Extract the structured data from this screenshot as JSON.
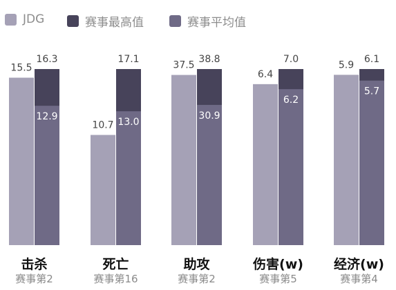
{
  "chart_data": {
    "type": "bar",
    "categories": [
      "击杀",
      "死亡",
      "助攻",
      "伤害(w)",
      "经济(w)"
    ],
    "category_subtitles": [
      "赛事第2",
      "赛事第16",
      "赛事第2",
      "赛事第5",
      "赛事第4"
    ],
    "series": [
      {
        "name": "JDG",
        "color": "#a5a1b6",
        "values": [
          15.5,
          10.7,
          37.5,
          6.4,
          5.9
        ]
      },
      {
        "name": "赛事最高值",
        "color": "#47435a",
        "values": [
          16.3,
          17.1,
          38.8,
          7.0,
          6.1
        ]
      },
      {
        "name": "赛事平均值",
        "color": "#6f6a86",
        "values": [
          12.9,
          13.0,
          30.9,
          6.2,
          5.7
        ]
      }
    ],
    "normalization": "per-category",
    "title": "",
    "xlabel": "",
    "ylabel": "",
    "legend_position": "top-left",
    "grid": false
  }
}
